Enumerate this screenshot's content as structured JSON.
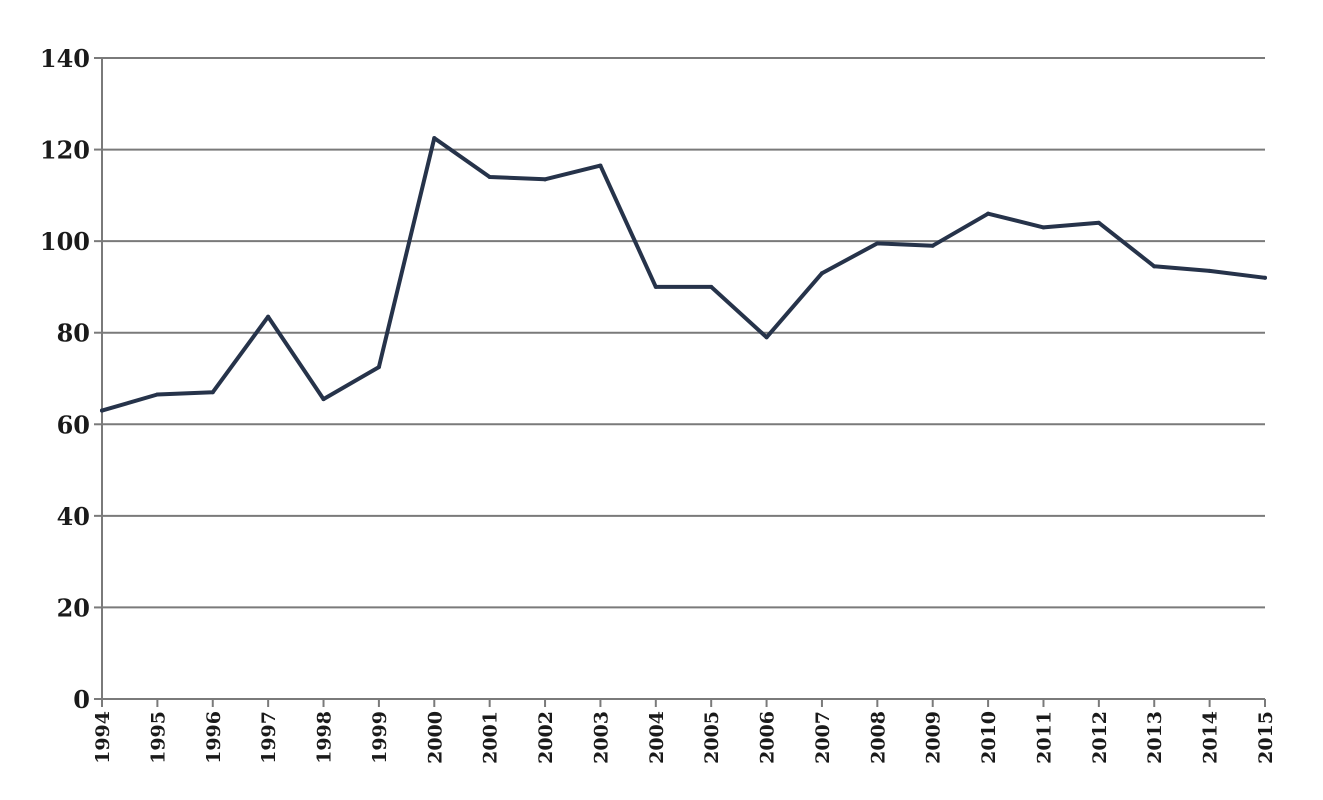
{
  "chart_data": {
    "type": "line",
    "title": "",
    "xlabel": "",
    "ylabel": "",
    "categories": [
      "1994",
      "1995",
      "1996",
      "1997",
      "1998",
      "1999",
      "2000",
      "2001",
      "2002",
      "2003",
      "2004",
      "2005",
      "2006",
      "2007",
      "2008",
      "2009",
      "2010",
      "2011",
      "2012",
      "2013",
      "2014",
      "2015"
    ],
    "series": [
      {
        "values": [
          63,
          66.5,
          67,
          83.5,
          65.5,
          72.5,
          122.5,
          114,
          113.5,
          116.5,
          90,
          90,
          79,
          93,
          99.5,
          99,
          106,
          103,
          104,
          94.5,
          93.5,
          92
        ],
        "color": "#26334a"
      }
    ],
    "ylim": [
      0,
      140
    ],
    "yticks": [
      0,
      20,
      40,
      60,
      80,
      100,
      120,
      140
    ],
    "grid": true,
    "legend": "none"
  }
}
